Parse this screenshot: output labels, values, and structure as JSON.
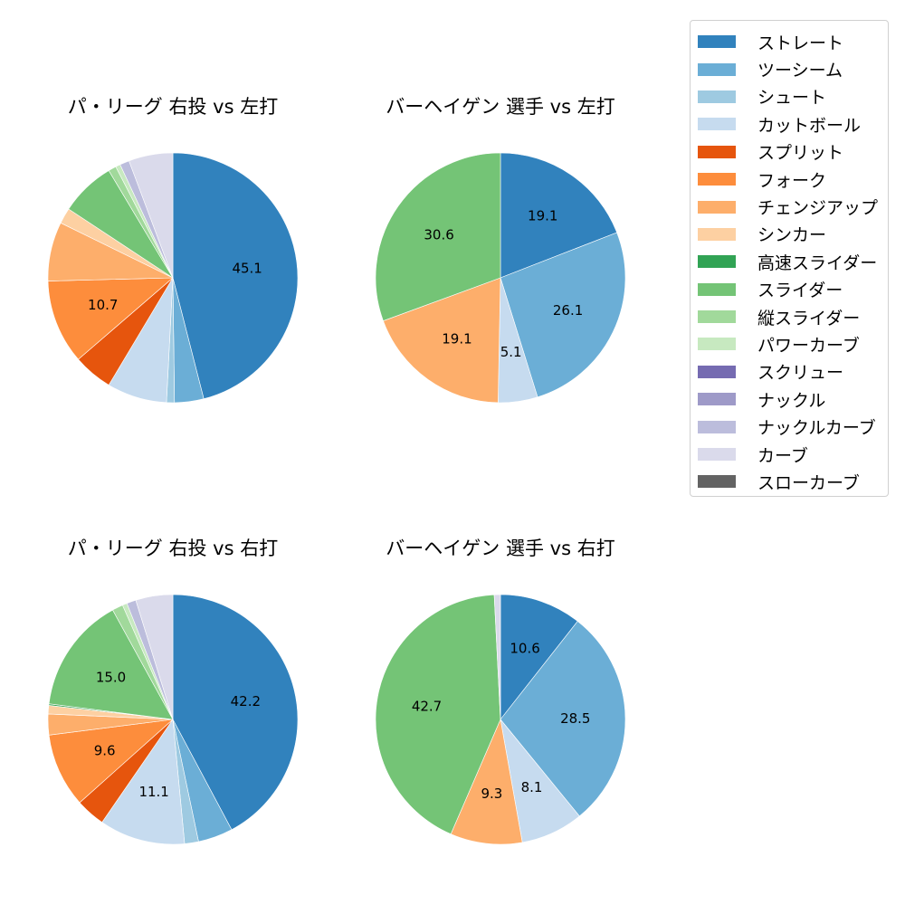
{
  "legend": {
    "items": [
      {
        "label": "ストレート",
        "color": "#3182bd"
      },
      {
        "label": "ツーシーム",
        "color": "#6baed6"
      },
      {
        "label": "シュート",
        "color": "#9ecae1"
      },
      {
        "label": "カットボール",
        "color": "#c6dbef"
      },
      {
        "label": "スプリット",
        "color": "#e6550d"
      },
      {
        "label": "フォーク",
        "color": "#fd8d3c"
      },
      {
        "label": "チェンジアップ",
        "color": "#fdae6b"
      },
      {
        "label": "シンカー",
        "color": "#fdd0a2"
      },
      {
        "label": "高速スライダー",
        "color": "#31a354"
      },
      {
        "label": "スライダー",
        "color": "#74c476"
      },
      {
        "label": "縦スライダー",
        "color": "#a1d99b"
      },
      {
        "label": "パワーカーブ",
        "color": "#c7e9c0"
      },
      {
        "label": "スクリュー",
        "color": "#756bb1"
      },
      {
        "label": "ナックル",
        "color": "#9e9ac8"
      },
      {
        "label": "ナックルカーブ",
        "color": "#bcbddc"
      },
      {
        "label": "カーブ",
        "color": "#dadaeb"
      },
      {
        "label": "スローカーブ",
        "color": "#636363"
      }
    ]
  },
  "chart_data": [
    {
      "type": "pie",
      "title": "パ・リーグ 右投 vs 左打",
      "categories": [
        "ストレート",
        "ツーシーム",
        "シュート",
        "カットボール",
        "スプリット",
        "フォーク",
        "チェンジアップ",
        "シンカー",
        "スライダー",
        "縦スライダー",
        "パワーカーブ",
        "ナックルカーブ",
        "カーブ"
      ],
      "values": [
        45.1,
        3.7,
        1.0,
        7.6,
        5.0,
        10.7,
        7.5,
        2.0,
        7.0,
        1.0,
        0.6,
        1.2,
        5.6
      ],
      "labels_shown": [
        "45.1",
        "10.7"
      ],
      "start_angle": 90,
      "direction": "clockwise"
    },
    {
      "type": "pie",
      "title": "バーヘイゲン 選手 vs 左打",
      "categories": [
        "ストレート",
        "ツーシーム",
        "カットボール",
        "チェンジアップ",
        "スライダー"
      ],
      "values": [
        19.1,
        26.1,
        5.1,
        19.1,
        30.6
      ],
      "labels_shown": [
        "19.1",
        "26.1",
        "5.1",
        "19.1",
        "30.6"
      ],
      "start_angle": 90,
      "direction": "clockwise"
    },
    {
      "type": "pie",
      "title": "パ・リーグ 右投 vs 右打",
      "categories": [
        "ストレート",
        "ツーシーム",
        "シュート",
        "カットボール",
        "スプリット",
        "フォーク",
        "チェンジアップ",
        "シンカー",
        "高速スライダー",
        "スライダー",
        "縦スライダー",
        "パワーカーブ",
        "ナックルカーブ",
        "カーブ"
      ],
      "values": [
        42.2,
        4.5,
        1.8,
        11.1,
        3.8,
        9.6,
        2.7,
        1.1,
        0.2,
        15.0,
        1.4,
        0.6,
        1.2,
        4.8
      ],
      "labels_shown": [
        "42.2",
        "11.1",
        "9.6",
        "15.0"
      ],
      "start_angle": 90,
      "direction": "clockwise"
    },
    {
      "type": "pie",
      "title": "バーヘイゲン 選手 vs 右打",
      "categories": [
        "ストレート",
        "ツーシーム",
        "カットボール",
        "チェンジアップ",
        "スライダー",
        "カーブ"
      ],
      "values": [
        10.6,
        28.5,
        8.1,
        9.3,
        42.7,
        0.8
      ],
      "labels_shown": [
        "10.6",
        "28.5",
        "8.1",
        "9.3",
        "42.7"
      ],
      "start_angle": 90,
      "direction": "clockwise"
    }
  ]
}
